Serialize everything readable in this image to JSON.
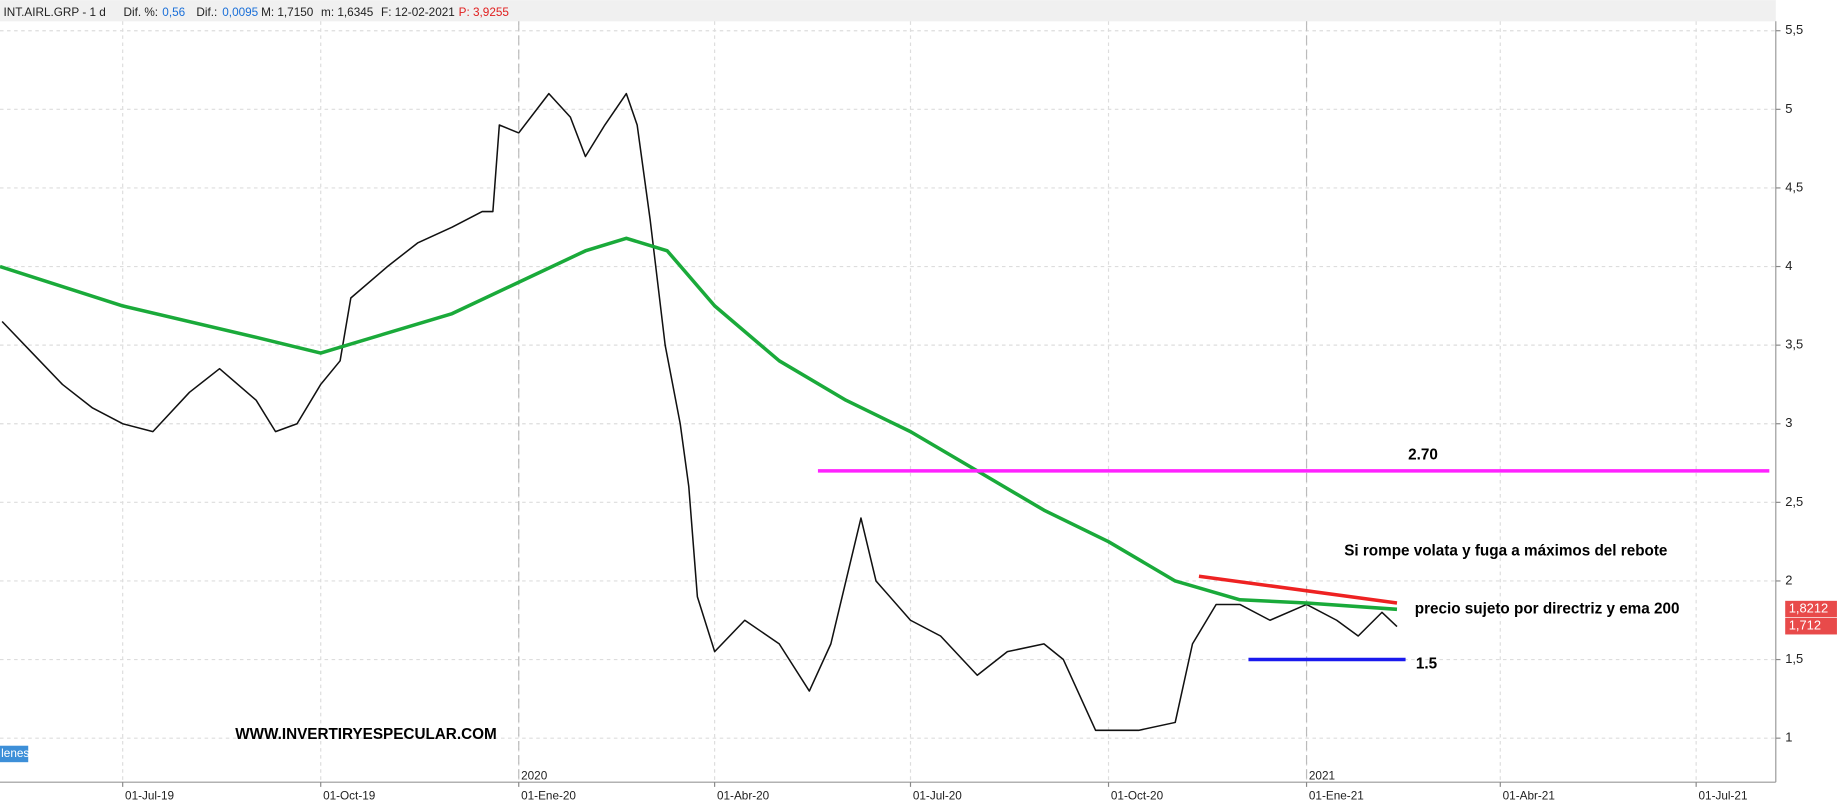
{
  "header": {
    "symbol": "INT.AIRL.GRP",
    "period": "- 1 d",
    "dif_pct_label": "Dif. %:",
    "dif_pct": "0,56",
    "dif_label": "Dif.:",
    "dif": "0,0095",
    "max": "M: 1,7150",
    "min": "m: 1,6345",
    "date": "F: 12-02-2021",
    "p": "P: 3,9255"
  },
  "chart_data": {
    "type": "line",
    "xlim": [
      "2019-05-05",
      "2021-08-07"
    ],
    "ylim": [
      0.72,
      5.56
    ],
    "yticks": [
      {
        "value": 5.5,
        "label": "5,5"
      },
      5,
      {
        "value": 4.5,
        "label": "4,5"
      },
      4,
      {
        "value": 3.5,
        "label": "3,5"
      },
      3,
      {
        "value": 2.5,
        "label": "2,5"
      },
      2,
      {
        "value": 1.5,
        "label": "1,5"
      },
      1
    ],
    "xticks": [
      {
        "value": "2019-07-01",
        "label": "01-Jul-19"
      },
      {
        "value": "2019-10-01",
        "label": "01-Oct-19"
      },
      {
        "value": "2020-01-01",
        "label": "01-Ene-20"
      },
      {
        "value": "2020-04-01",
        "label": "01-Abr-20"
      },
      {
        "value": "2020-07-01",
        "label": "01-Jul-20"
      },
      {
        "value": "2020-10-01",
        "label": "01-Oct-20"
      },
      {
        "value": "2021-01-01",
        "label": "01-Ene-21"
      },
      {
        "value": "2021-04-01",
        "label": "01-Abr-21"
      },
      {
        "value": "2021-07-01",
        "label": "01-Jul-21"
      }
    ],
    "year_marks": [
      {
        "value": "2020-01-01",
        "label": "2020"
      },
      {
        "value": "2021-01-01",
        "label": "2021"
      }
    ],
    "grid": true,
    "series": [
      {
        "color": "#111111",
        "x": [
          "2019-05-06",
          "2019-05-20",
          "2019-06-03",
          "2019-06-17",
          "2019-07-01",
          "2019-07-15",
          "2019-08-01",
          "2019-08-15",
          "2019-09-01",
          "2019-09-10",
          "2019-09-20",
          "2019-10-01",
          "2019-10-10",
          "2019-10-15",
          "2019-11-01",
          "2019-11-15",
          "2019-12-01",
          "2019-12-15",
          "2019-12-20",
          "2019-12-23",
          "2020-01-01",
          "2020-01-15",
          "2020-01-25",
          "2020-02-01",
          "2020-02-10",
          "2020-02-20",
          "2020-02-25",
          "2020-03-02",
          "2020-03-09",
          "2020-03-16",
          "2020-03-20",
          "2020-03-24",
          "2020-04-01",
          "2020-04-15",
          "2020-05-01",
          "2020-05-15",
          "2020-05-25",
          "2020-06-08",
          "2020-06-15",
          "2020-07-01",
          "2020-07-15",
          "2020-08-01",
          "2020-08-15",
          "2020-09-01",
          "2020-09-10",
          "2020-09-25",
          "2020-10-15",
          "2020-11-01",
          "2020-11-09",
          "2020-11-20",
          "2020-12-01",
          "2020-12-15",
          "2021-01-01",
          "2021-01-15",
          "2021-01-25",
          "2021-02-05",
          "2021-02-12"
        ],
        "values": [
          3.65,
          3.45,
          3.25,
          3.1,
          3.0,
          2.95,
          3.2,
          3.35,
          3.15,
          2.95,
          3.0,
          3.25,
          3.4,
          3.8,
          4.0,
          4.15,
          4.25,
          4.35,
          4.35,
          4.9,
          4.85,
          5.1,
          4.95,
          4.7,
          4.9,
          5.1,
          4.9,
          4.3,
          3.5,
          3.0,
          2.6,
          1.9,
          1.55,
          1.75,
          1.6,
          1.3,
          1.6,
          2.4,
          2.0,
          1.75,
          1.65,
          1.4,
          1.55,
          1.6,
          1.5,
          1.05,
          1.05,
          1.1,
          1.6,
          1.85,
          1.85,
          1.75,
          1.85,
          1.75,
          1.65,
          1.8,
          1.71
        ]
      },
      {
        "color": "#1aaa3a",
        "x": [
          "2019-05-05",
          "2019-07-01",
          "2019-09-01",
          "2019-10-01",
          "2019-12-01",
          "2020-01-01",
          "2020-02-01",
          "2020-02-20",
          "2020-03-10",
          "2020-04-01",
          "2020-05-01",
          "2020-06-01",
          "2020-07-01",
          "2020-08-01",
          "2020-09-01",
          "2020-10-01",
          "2020-11-01",
          "2020-12-01",
          "2021-01-01",
          "2021-02-12"
        ],
        "values": [
          4.0,
          3.75,
          3.55,
          3.45,
          3.7,
          3.9,
          4.1,
          4.18,
          4.1,
          3.75,
          3.4,
          3.15,
          2.95,
          2.7,
          2.45,
          2.25,
          2.0,
          1.88,
          1.86,
          1.82
        ]
      },
      {
        "color": "#ff22ff",
        "x": [
          "2020-05-19",
          "2021-08-04"
        ],
        "values": [
          2.7,
          2.7
        ]
      },
      {
        "color": "#1a1aee",
        "x": [
          "2020-12-05",
          "2021-02-16"
        ],
        "values": [
          1.5,
          1.5
        ]
      },
      {
        "color": "#ee2222",
        "x": [
          "2020-11-12",
          "2021-02-12"
        ],
        "values": [
          2.03,
          1.86
        ]
      }
    ],
    "price_labels": [
      {
        "value": 1.8212,
        "label": "1,8212"
      },
      {
        "value": 1.712,
        "label": "1,712"
      }
    ],
    "annotations": {
      "resistance": "2.70",
      "breakout": "Si rompe volata y fuga a máximos del rebote",
      "comment": "precio sujeto por directriz y ema 200",
      "support": "1.5",
      "watermark": "WWW.INVERTIRYESPECULAR.COM",
      "tag": "lenes"
    }
  }
}
